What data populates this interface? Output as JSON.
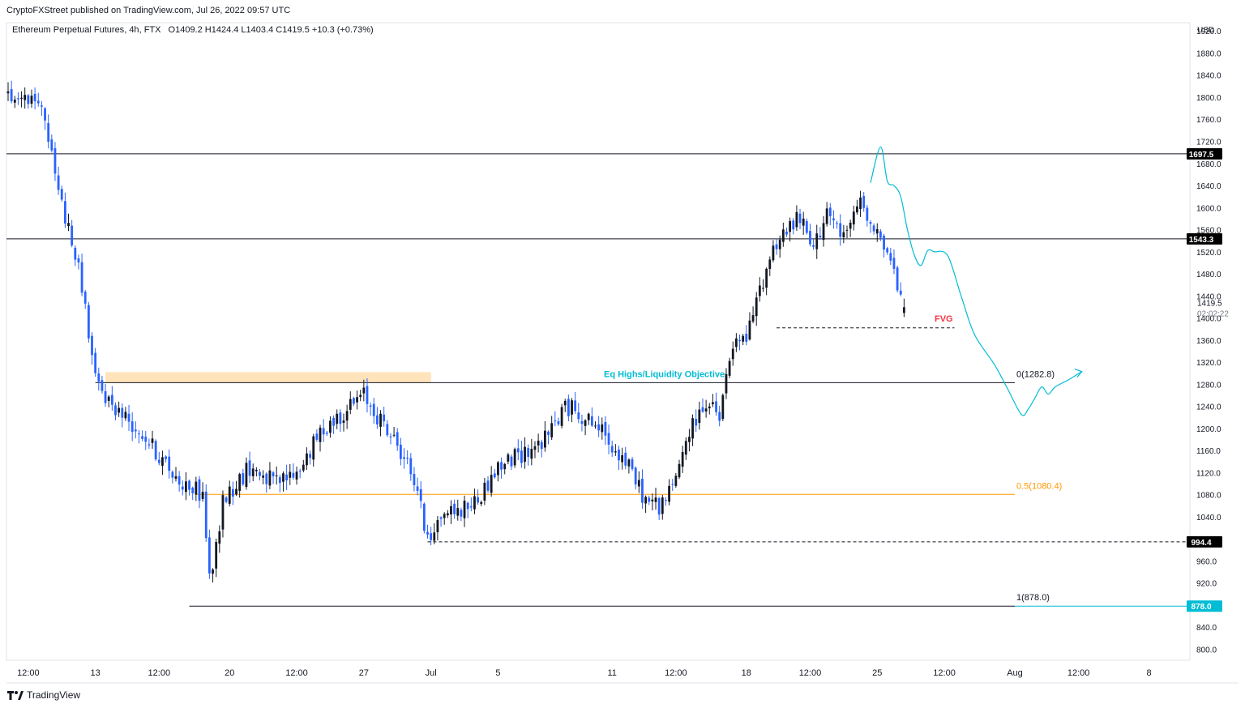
{
  "header": {
    "credit": "CryptoFXStreet published on TradingView.com, Jul 26, 2022 09:57 UTC",
    "symbol": "Ethereum Perpetual Futures",
    "timeframe": "4h",
    "exchange": "FTX",
    "ohlc_text": "O1409.2  H1424.4  L1403.4  C1419.5  +10.3 (+0.73%)"
  },
  "brand": {
    "name": "TradingView",
    "icon": "tradingview-logo-icon"
  },
  "colors": {
    "up": "#131722",
    "down": "#2962ff",
    "accent_cyan": "#00bcd4",
    "fib_mid": "#ff9800",
    "zone": "#ffe0b2",
    "fvg": "#f23645",
    "badge_black": "#000000"
  },
  "chart_data": {
    "type": "candlestick",
    "timeframe": "4h",
    "ylim": [
      780,
      1935
    ],
    "y_ticks": [
      800,
      840,
      880,
      920,
      960,
      1000,
      1040,
      1080,
      1120,
      1160,
      1200,
      1240,
      1280,
      1320,
      1360,
      1400,
      1440,
      1480,
      1520,
      1560,
      1600,
      1640,
      1680,
      1720,
      1760,
      1800,
      1840,
      1880,
      1920
    ],
    "currency_label": "USD",
    "x_ticks": [
      {
        "label": "12:00",
        "idx": 6
      },
      {
        "label": "13",
        "idx": 26
      },
      {
        "label": "12:00",
        "idx": 45
      },
      {
        "label": "20",
        "idx": 66
      },
      {
        "label": "12:00",
        "idx": 86
      },
      {
        "label": "27",
        "idx": 106
      },
      {
        "label": "Jul",
        "idx": 126
      },
      {
        "label": "5",
        "idx": 146
      },
      {
        "label": "11",
        "idx": 180
      },
      {
        "label": "12:00",
        "idx": 199
      },
      {
        "label": "18",
        "idx": 220
      },
      {
        "label": "12:00",
        "idx": 239
      },
      {
        "label": "25",
        "idx": 259
      },
      {
        "label": "12:00",
        "idx": 279
      },
      {
        "label": "Aug",
        "idx": 300
      },
      {
        "label": "12:00",
        "idx": 319
      },
      {
        "label": "8",
        "idx": 340
      }
    ],
    "anchors": [
      [
        0,
        1800
      ],
      [
        10,
        1790
      ],
      [
        14,
        1660
      ],
      [
        18,
        1560
      ],
      [
        22,
        1460
      ],
      [
        26,
        1285
      ],
      [
        30,
        1250
      ],
      [
        40,
        1190
      ],
      [
        50,
        1110
      ],
      [
        58,
        1080
      ],
      [
        60,
        928
      ],
      [
        62,
        980
      ],
      [
        64,
        1070
      ],
      [
        72,
        1130
      ],
      [
        80,
        1100
      ],
      [
        86,
        1120
      ],
      [
        94,
        1200
      ],
      [
        100,
        1230
      ],
      [
        106,
        1260
      ],
      [
        112,
        1205
      ],
      [
        118,
        1150
      ],
      [
        122,
        1090
      ],
      [
        124,
        1020
      ],
      [
        126,
        1010
      ],
      [
        130,
        1050
      ],
      [
        134,
        1050
      ],
      [
        140,
        1070
      ],
      [
        146,
        1130
      ],
      [
        152,
        1150
      ],
      [
        160,
        1180
      ],
      [
        166,
        1240
      ],
      [
        170,
        1230
      ],
      [
        176,
        1200
      ],
      [
        184,
        1140
      ],
      [
        190,
        1070
      ],
      [
        194,
        1060
      ],
      [
        198,
        1090
      ],
      [
        202,
        1180
      ],
      [
        208,
        1250
      ],
      [
        212,
        1215
      ],
      [
        214,
        1290
      ],
      [
        216,
        1350
      ],
      [
        220,
        1360
      ],
      [
        224,
        1450
      ],
      [
        228,
        1530
      ],
      [
        232,
        1560
      ],
      [
        236,
        1580
      ],
      [
        240,
        1520
      ],
      [
        244,
        1600
      ],
      [
        248,
        1540
      ],
      [
        252,
        1580
      ],
      [
        254,
        1615
      ],
      [
        256,
        1590
      ],
      [
        258,
        1570
      ],
      [
        262,
        1520
      ],
      [
        264,
        1480
      ],
      [
        266,
        1430
      ],
      [
        267,
        1419.5
      ]
    ],
    "last_price": 1419.5,
    "countdown": "02:02:22",
    "levels": [
      {
        "name": "resistance-1697",
        "value": 1697.5,
        "label": "1697.5",
        "style": "solid"
      },
      {
        "name": "resistance-1543",
        "value": 1543.3,
        "label": "1543.3",
        "style": "solid"
      },
      {
        "name": "equal-lows",
        "value": 994.4,
        "label": "994.4",
        "style": "dashed"
      },
      {
        "name": "fib-1",
        "value": 878.0,
        "label": "878.0",
        "style": "solid"
      }
    ],
    "fib": [
      {
        "label": "0(1282.8)",
        "value": 1282.8
      },
      {
        "label": "0.5(1080.4)",
        "value": 1080.4
      },
      {
        "label": "1(878.0)",
        "value": 878.0
      }
    ],
    "annotations": {
      "eq_highs": "Eq Highs/Liquidity Objective",
      "fvg": "FVG",
      "fvg_level": 1382
    },
    "supply_zone": {
      "from_idx": 29,
      "to_idx": 126,
      "low": 1282.8,
      "high": 1302
    },
    "projection": [
      [
        257,
        1645
      ],
      [
        260,
        1710
      ],
      [
        262,
        1648
      ],
      [
        264,
        1640
      ],
      [
        266,
        1620
      ],
      [
        268,
        1560
      ],
      [
        270,
        1515
      ],
      [
        272,
        1495
      ],
      [
        274,
        1522
      ],
      [
        276,
        1520
      ],
      [
        280,
        1513
      ],
      [
        284,
        1440
      ],
      [
        288,
        1370
      ],
      [
        294,
        1315
      ],
      [
        298,
        1270
      ],
      [
        302,
        1225
      ],
      [
        304,
        1235
      ],
      [
        306,
        1255
      ],
      [
        308,
        1275
      ],
      [
        310,
        1262
      ],
      [
        312,
        1275
      ],
      [
        316,
        1288
      ],
      [
        320,
        1303
      ]
    ]
  }
}
